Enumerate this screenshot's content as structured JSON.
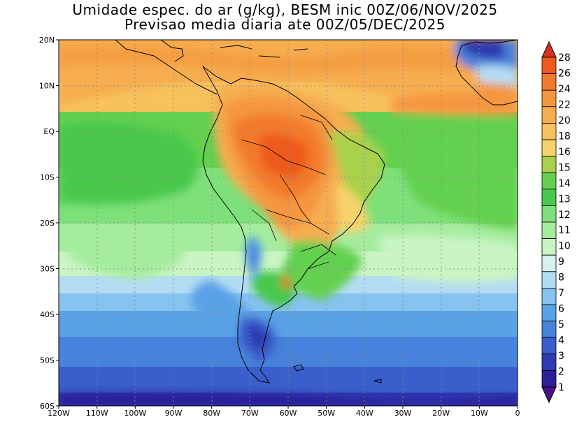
{
  "title": {
    "line1": "Umidade espec. do ar (g/kg), BESM inic 00Z/06/NOV/2025",
    "line2": "Previsao media diaria ate 00Z/05/DEC/2025"
  },
  "map": {
    "lon_range": [
      -120,
      0
    ],
    "lat_range": [
      -60,
      20
    ],
    "lat_labels": [
      "20N",
      "10N",
      "EQ",
      "10S",
      "20S",
      "30S",
      "40S",
      "50S",
      "60S"
    ],
    "lon_labels": [
      "120W",
      "110W",
      "100W",
      "90W",
      "80W",
      "70W",
      "60W",
      "50W",
      "40W",
      "30W",
      "20W",
      "10W",
      "0"
    ],
    "variable": "specific humidity",
    "units": "g/kg"
  },
  "colorbar": {
    "levels": [
      "28",
      "26",
      "24",
      "22",
      "20",
      "18",
      "16",
      "15",
      "14",
      "13",
      "12",
      "11",
      "10",
      "9",
      "8",
      "7",
      "6",
      "5",
      "4",
      "3",
      "2",
      "1"
    ],
    "colors": [
      "#d8301f",
      "#ee5a1e",
      "#f37a2c",
      "#f4973f",
      "#f6ad4f",
      "#f7c15c",
      "#f5d36a",
      "#a9d14b",
      "#63d04f",
      "#49c84b",
      "#7ee07a",
      "#a6ec9f",
      "#c9f5c3",
      "#d6f1ee",
      "#b3dcf3",
      "#86c3ef",
      "#5aa2e6",
      "#4782dc",
      "#3a5ecb",
      "#2f39b1",
      "#2c1f98",
      "#4a118a"
    ]
  }
}
